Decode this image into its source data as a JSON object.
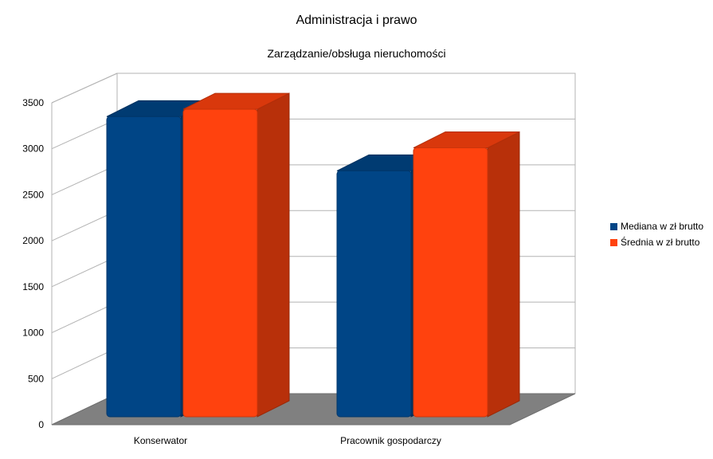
{
  "chart_data": {
    "type": "bar",
    "title": "Administracja i prawo",
    "subtitle": "Zarządzanie/obsługa nieruchomości",
    "categories": [
      "Konserwator",
      "Pracownik gospodarczy"
    ],
    "series": [
      {
        "name": "Mediana w zł brutto",
        "values": [
          3350,
          2760
        ],
        "color": "#004586"
      },
      {
        "name": "Średnia w zł brutto",
        "values": [
          3430,
          3010
        ],
        "color": "#ff420e"
      }
    ],
    "ylim": [
      0,
      3500
    ],
    "yticks": [
      "0",
      "500",
      "1000",
      "1500",
      "2000",
      "2500",
      "3000",
      "3500"
    ],
    "grid": true,
    "style": "3d",
    "legend_position": "right"
  }
}
